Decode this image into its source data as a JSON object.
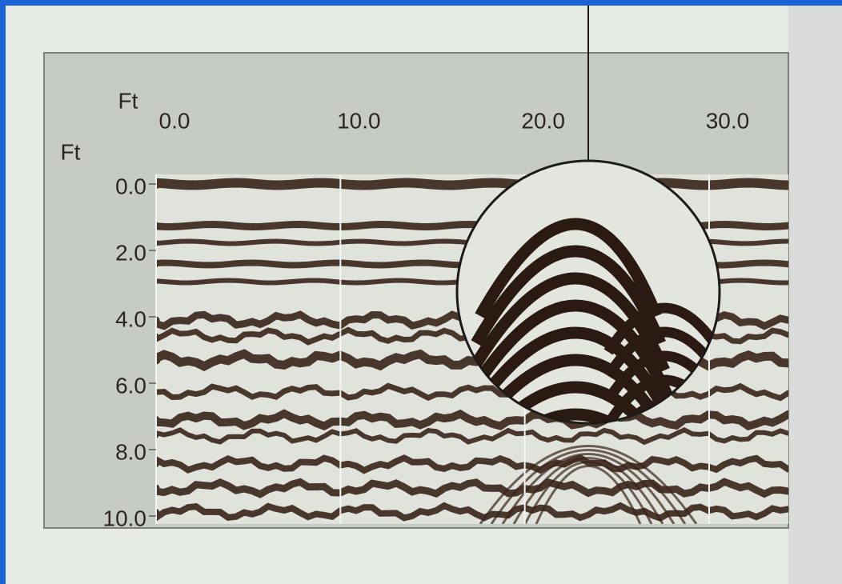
{
  "figure": {
    "x_unit": "Ft",
    "y_unit": "Ft",
    "xlim": [
      0,
      34.3
    ],
    "ylim": [
      0,
      10
    ],
    "xticks": [
      {
        "value": 0,
        "label": "0.0"
      },
      {
        "value": 10,
        "label": "10.0"
      },
      {
        "value": 20,
        "label": "20.0"
      },
      {
        "value": 30,
        "label": "30.0"
      }
    ],
    "yticks": [
      {
        "value": 0,
        "label": "0.0"
      },
      {
        "value": 2,
        "label": "2.0"
      },
      {
        "value": 4,
        "label": "4.0"
      },
      {
        "value": 6,
        "label": "6.0"
      },
      {
        "value": 8,
        "label": "8.0"
      },
      {
        "value": 10,
        "label": "10.0"
      }
    ]
  }
}
